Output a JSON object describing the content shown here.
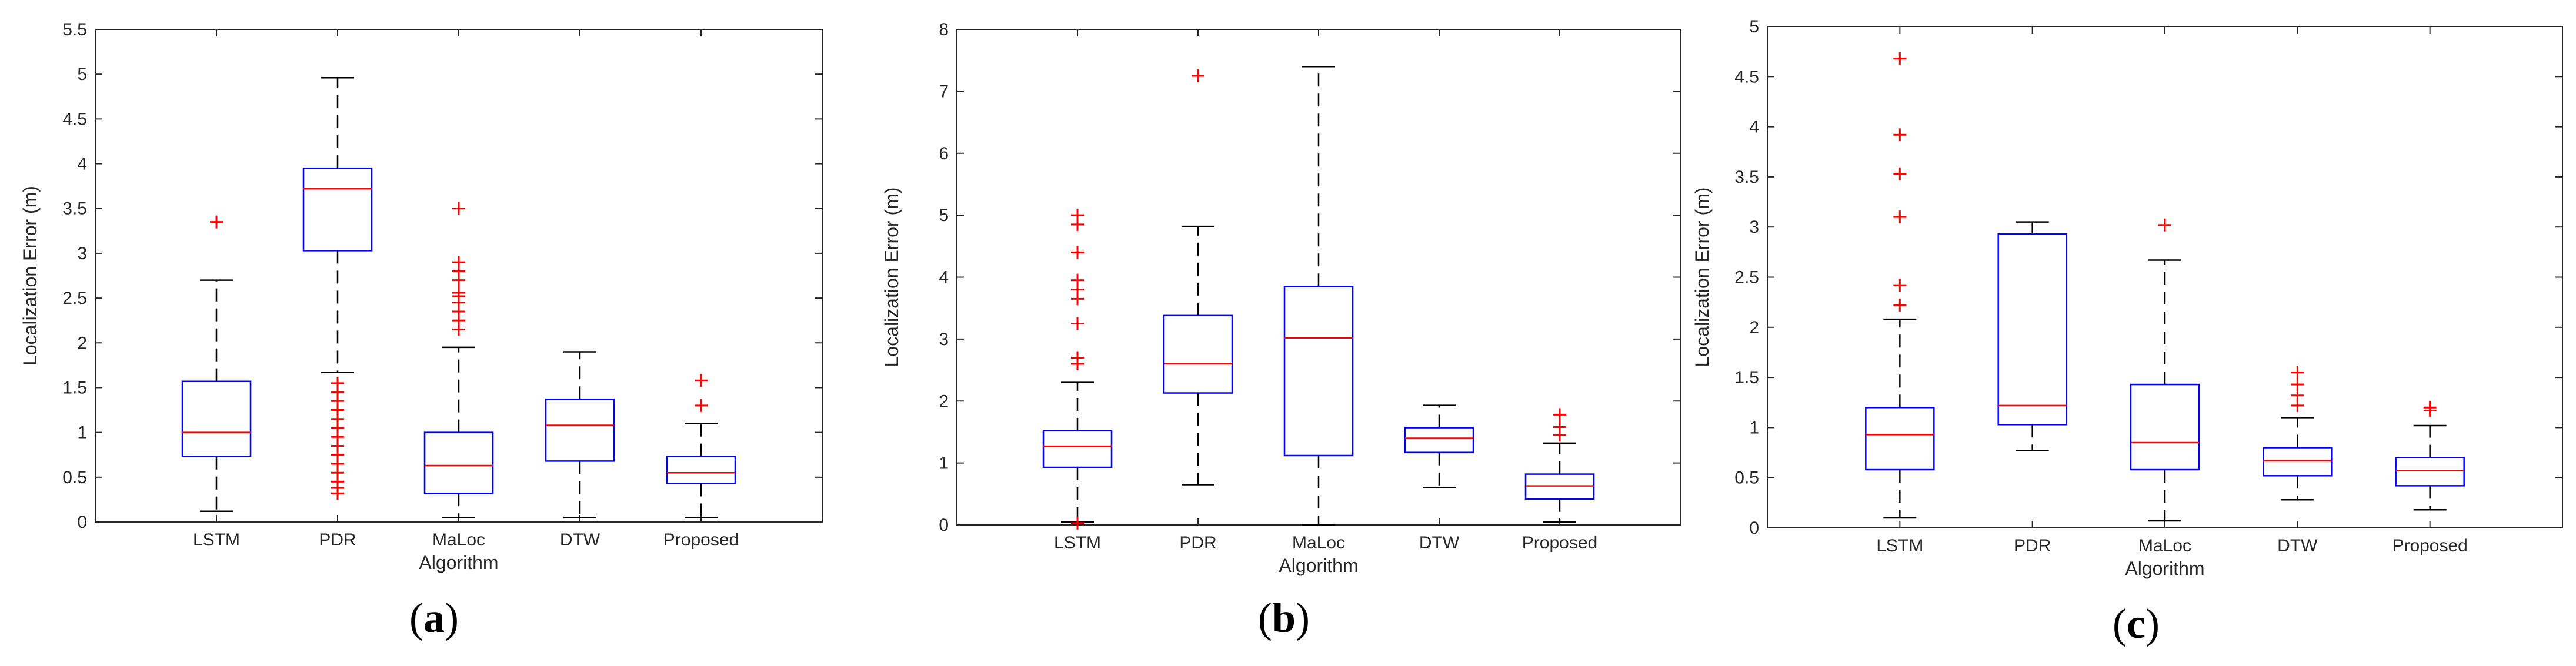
{
  "chart_data": [
    {
      "type": "box",
      "panel_label": "a",
      "xlabel": "Algorithm",
      "ylabel": "Localization Error (m)",
      "ylim": [
        0,
        5.5
      ],
      "yticks": [
        0,
        0.5,
        1,
        1.5,
        2,
        2.5,
        3,
        3.5,
        4,
        4.5,
        5,
        5.5
      ],
      "categories": [
        "LSTM",
        "PDR",
        "MaLoc",
        "DTW",
        "Proposed"
      ],
      "boxes": [
        {
          "name": "LSTM",
          "whisker_low": 0.12,
          "q1": 0.73,
          "median": 1.0,
          "q3": 1.57,
          "whisker_high": 2.7,
          "outliers": [
            3.35
          ]
        },
        {
          "name": "PDR",
          "whisker_low": 1.67,
          "q1": 3.03,
          "median": 3.72,
          "q3": 3.95,
          "whisker_high": 4.96,
          "outliers": [
            1.55,
            1.45,
            1.35,
            1.25,
            1.15,
            1.05,
            0.95,
            0.85,
            0.75,
            0.65,
            0.55,
            0.45,
            0.38,
            0.32
          ]
        },
        {
          "name": "MaLoc",
          "whisker_low": 0.05,
          "q1": 0.32,
          "median": 0.63,
          "q3": 1.0,
          "whisker_high": 1.95,
          "outliers": [
            2.15,
            2.25,
            2.35,
            2.45,
            2.52,
            2.56,
            2.7,
            2.8,
            2.9,
            3.5
          ]
        },
        {
          "name": "DTW",
          "whisker_low": 0.05,
          "q1": 0.68,
          "median": 1.08,
          "q3": 1.37,
          "whisker_high": 1.9,
          "outliers": []
        },
        {
          "name": "Proposed",
          "whisker_low": 0.05,
          "q1": 0.43,
          "median": 0.55,
          "q3": 0.73,
          "whisker_high": 1.1,
          "outliers": [
            1.3,
            1.58
          ]
        }
      ]
    },
    {
      "type": "box",
      "panel_label": "b",
      "xlabel": "Algorithm",
      "ylabel": "Localization Error (m)",
      "ylim": [
        0,
        8
      ],
      "yticks": [
        0,
        1,
        2,
        3,
        4,
        5,
        6,
        7,
        8
      ],
      "categories": [
        "LSTM",
        "PDR",
        "MaLoc",
        "DTW",
        "Proposed"
      ],
      "boxes": [
        {
          "name": "LSTM",
          "whisker_low": 0.05,
          "q1": 0.93,
          "median": 1.27,
          "q3": 1.52,
          "whisker_high": 2.3,
          "outliers": [
            2.6,
            2.7,
            3.25,
            3.65,
            3.8,
            3.95,
            4.4,
            4.85,
            5.0,
            0.03
          ]
        },
        {
          "name": "PDR",
          "whisker_low": 0.65,
          "q1": 2.13,
          "median": 2.6,
          "q3": 3.38,
          "whisker_high": 4.82,
          "outliers": [
            7.25
          ]
        },
        {
          "name": "MaLoc",
          "whisker_low": 0.0,
          "q1": 1.12,
          "median": 3.02,
          "q3": 3.85,
          "whisker_high": 7.4,
          "outliers": []
        },
        {
          "name": "DTW",
          "whisker_low": 0.6,
          "q1": 1.17,
          "median": 1.4,
          "q3": 1.57,
          "whisker_high": 1.93,
          "outliers": []
        },
        {
          "name": "Proposed",
          "whisker_low": 0.05,
          "q1": 0.42,
          "median": 0.63,
          "q3": 0.82,
          "whisker_high": 1.32,
          "outliers": [
            1.45,
            1.58,
            1.78
          ]
        }
      ]
    },
    {
      "type": "box",
      "panel_label": "c",
      "xlabel": "Algorithm",
      "ylabel": "Localization Error (m)",
      "ylim": [
        0,
        5
      ],
      "yticks": [
        0,
        0.5,
        1,
        1.5,
        2,
        2.5,
        3,
        3.5,
        4,
        4.5,
        5
      ],
      "categories": [
        "LSTM",
        "PDR",
        "MaLoc",
        "DTW",
        "Proposed"
      ],
      "boxes": [
        {
          "name": "LSTM",
          "whisker_low": 0.1,
          "q1": 0.58,
          "median": 0.93,
          "q3": 1.2,
          "whisker_high": 2.08,
          "outliers": [
            2.22,
            2.42,
            3.1,
            3.53,
            3.92,
            4.68
          ]
        },
        {
          "name": "PDR",
          "whisker_low": 0.77,
          "q1": 1.03,
          "median": 1.22,
          "q3": 2.93,
          "whisker_high": 3.05,
          "outliers": []
        },
        {
          "name": "MaLoc",
          "whisker_low": 0.07,
          "q1": 0.58,
          "median": 0.85,
          "q3": 1.43,
          "whisker_high": 2.67,
          "outliers": [
            3.02
          ]
        },
        {
          "name": "DTW",
          "whisker_low": 0.28,
          "q1": 0.52,
          "median": 0.67,
          "q3": 0.8,
          "whisker_high": 1.1,
          "outliers": [
            1.22,
            1.32,
            1.43,
            1.55
          ]
        },
        {
          "name": "Proposed",
          "whisker_low": 0.18,
          "q1": 0.42,
          "median": 0.57,
          "q3": 0.7,
          "whisker_high": 1.02,
          "outliers": [
            1.17,
            1.2
          ]
        }
      ]
    }
  ],
  "colors": {
    "box": "#0000ff",
    "median": "#ff0000",
    "outlier": "#ff0000",
    "whisker": "#000000",
    "axis": "#262626"
  }
}
